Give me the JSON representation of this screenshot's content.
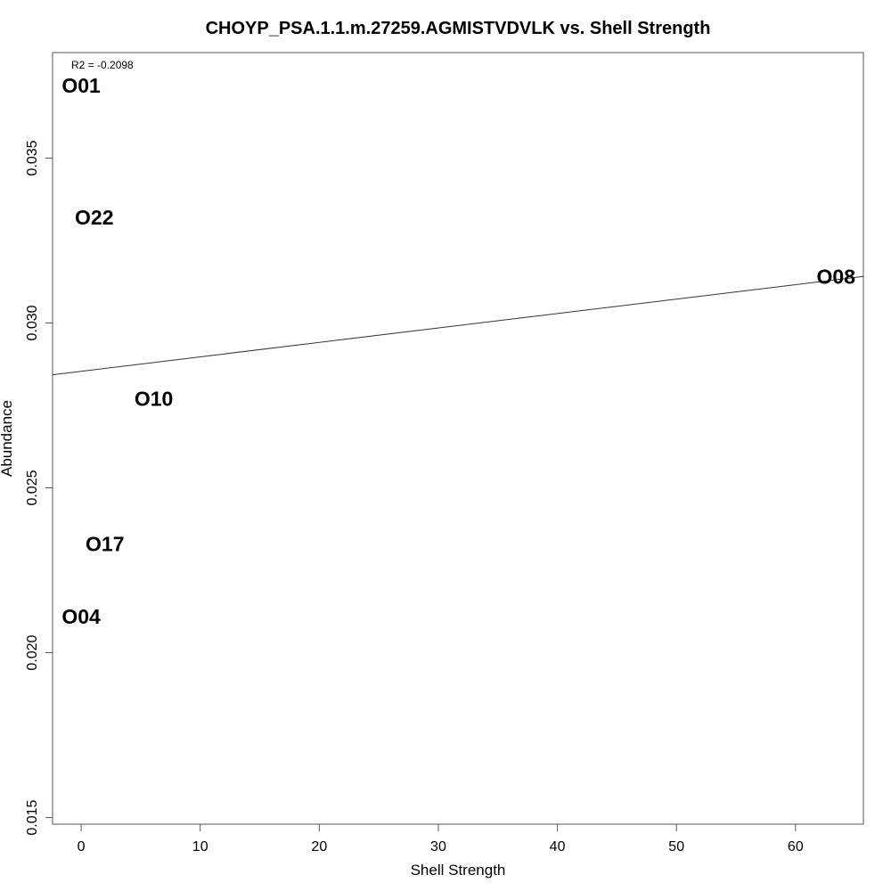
{
  "chart_data": {
    "type": "scatter",
    "title": "CHOYP_PSA.1.1.m.27259.AGMISTVDVLK vs. Shell Strength",
    "xlabel": "Shell Strength",
    "ylabel": "Abundance",
    "xlim": [
      -2.4,
      65.7
    ],
    "ylim": [
      0.0148,
      0.0382
    ],
    "xticks": [
      0,
      10,
      20,
      30,
      40,
      50,
      60
    ],
    "yticks": [
      0.015,
      0.02,
      0.025,
      0.03,
      0.035
    ],
    "ytick_labels": [
      "0.015",
      "0.020",
      "0.025",
      "0.030",
      "0.035"
    ],
    "grid": false,
    "annotation": "R2 = -0.2098",
    "points": [
      {
        "label": "O01",
        "x": 0,
        "y": 0.0372
      },
      {
        "label": "O22",
        "x": 1.1,
        "y": 0.0332
      },
      {
        "label": "O08",
        "x": 63.4,
        "y": 0.0314
      },
      {
        "label": "O10",
        "x": 6.1,
        "y": 0.0277
      },
      {
        "label": "O17",
        "x": 2.0,
        "y": 0.0233
      },
      {
        "label": "O04",
        "x": 0.0,
        "y": 0.0211
      }
    ],
    "regression_line": {
      "x": [
        -2.4,
        65.7
      ],
      "y": [
        0.02843,
        0.03141
      ]
    }
  }
}
